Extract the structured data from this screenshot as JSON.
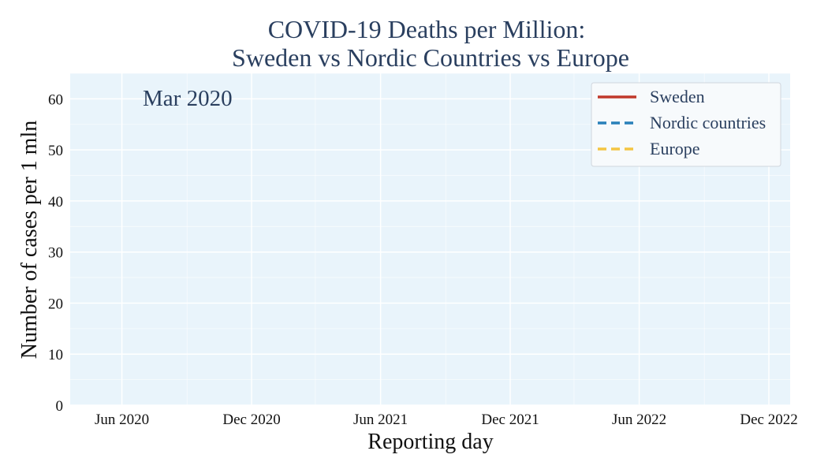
{
  "chart_data": {
    "type": "line",
    "title": [
      "COVID-19 Deaths per Million:",
      "Sweden vs Nordic Countries vs Europe"
    ],
    "xlabel": "Reporting day",
    "ylabel": "Number of cases per 1 mln",
    "period_label": "Mar 2020",
    "xlim": [
      "2020-03-20",
      "2022-12-31"
    ],
    "ylim": [
      0,
      65
    ],
    "x_ticks": [
      {
        "date": "2020-06-01",
        "label": "Jun 2020"
      },
      {
        "date": "2020-12-01",
        "label": "Dec 2020"
      },
      {
        "date": "2021-06-01",
        "label": "Jun 2021"
      },
      {
        "date": "2021-12-01",
        "label": "Dec 2021"
      },
      {
        "date": "2022-06-01",
        "label": "Jun 2022"
      },
      {
        "date": "2022-12-01",
        "label": "Dec 2022"
      }
    ],
    "x_minor_grid": [
      "2020-09-01",
      "2021-03-01",
      "2021-09-01",
      "2022-03-01",
      "2022-09-01"
    ],
    "y_ticks": [
      0,
      10,
      20,
      30,
      40,
      50,
      60
    ],
    "grid": true,
    "legend_position": "top-right",
    "series": [
      {
        "name": "Sweden",
        "color": "#c0392b",
        "dash": "solid",
        "x": [],
        "y": []
      },
      {
        "name": "Nordic countries",
        "color": "#2980b9",
        "dash": "dashed",
        "x": [],
        "y": []
      },
      {
        "name": "Europe",
        "color": "#f4c542",
        "dash": "dashed",
        "x": [],
        "y": []
      }
    ],
    "colors": {
      "plot_background": "#e9f4fb",
      "grid": "#ffffff",
      "text": "#2a3f5f"
    }
  }
}
